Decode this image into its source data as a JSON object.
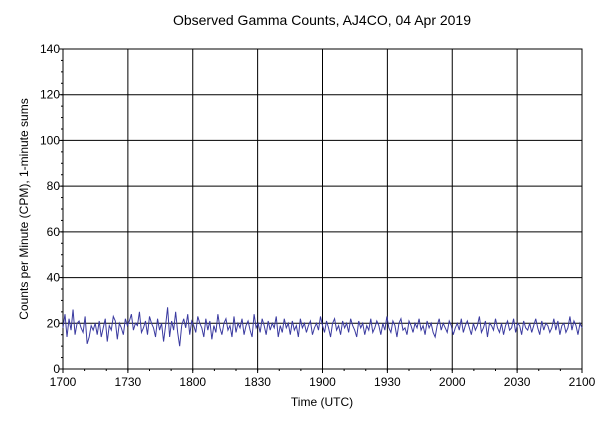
{
  "chart_data": {
    "type": "line",
    "title": "Observed Gamma Counts, AJ4CO, 04 Apr 2019",
    "xlabel": "Time (UTC)",
    "ylabel": "Counts per Minute (CPM), 1-minute sums",
    "x_tick_labels": [
      "1700",
      "1730",
      "1800",
      "1830",
      "1900",
      "1930",
      "2000",
      "2030",
      "2100"
    ],
    "y_tick_labels": [
      "0",
      "20",
      "40",
      "60",
      "80",
      "100",
      "120",
      "140"
    ],
    "xlim": [
      "17:00",
      "21:00"
    ],
    "ylim": [
      0,
      140
    ],
    "grid": true,
    "line_color": "#3a3aa0",
    "series": [
      {
        "values": [
          18,
          24,
          14,
          22,
          17,
          26,
          15,
          20,
          21,
          18,
          16,
          23,
          11,
          14,
          19,
          17,
          20,
          15,
          21,
          14,
          18,
          22,
          12,
          19,
          17,
          23,
          21,
          13,
          20,
          18,
          15,
          22,
          19,
          21,
          24,
          17,
          20,
          19,
          25,
          16,
          18,
          21,
          15,
          23,
          20,
          18,
          14,
          22,
          17,
          20,
          12,
          19,
          27,
          14,
          21,
          17,
          25,
          16,
          10,
          19,
          22,
          18,
          24,
          15,
          21,
          19,
          16,
          23,
          20,
          18,
          14,
          22,
          17,
          21,
          13,
          19,
          16,
          24,
          18,
          15,
          20,
          22,
          17,
          19,
          14,
          23,
          16,
          20,
          18,
          22,
          15,
          19,
          21,
          17,
          14,
          24,
          18,
          20,
          16,
          22,
          19,
          15,
          21,
          17,
          20,
          18,
          23,
          14,
          19,
          16,
          22,
          18,
          20,
          15,
          21,
          17,
          19,
          14,
          22,
          18,
          20,
          16,
          19,
          21,
          15,
          18,
          20,
          17,
          23,
          19,
          16,
          21,
          18,
          14,
          20,
          22,
          17,
          19,
          15,
          21,
          18,
          20,
          16,
          22,
          19,
          17,
          14,
          21,
          18,
          20,
          15,
          19,
          17,
          22,
          16,
          18,
          21,
          19,
          15,
          20,
          17,
          23,
          18,
          16,
          21,
          19,
          14,
          20,
          22,
          17,
          18,
          15,
          21,
          19,
          16,
          20,
          18,
          22,
          17,
          19,
          15,
          21,
          18,
          20,
          16,
          14,
          19,
          22,
          17,
          20,
          18,
          16,
          21,
          19,
          15,
          18,
          20,
          17,
          22,
          16,
          19,
          21,
          18,
          15,
          20,
          17,
          19,
          23,
          16,
          18,
          21,
          14,
          20,
          19,
          17,
          22,
          18,
          16,
          20,
          15,
          19,
          21,
          17,
          18,
          22,
          16,
          20,
          19,
          15,
          21,
          18,
          17,
          20,
          16,
          19,
          22,
          18,
          15,
          21,
          17,
          20,
          19,
          16,
          18,
          22,
          17,
          21,
          15,
          19,
          20,
          16,
          18,
          23,
          17,
          21,
          19,
          15,
          20,
          18
        ]
      }
    ]
  }
}
